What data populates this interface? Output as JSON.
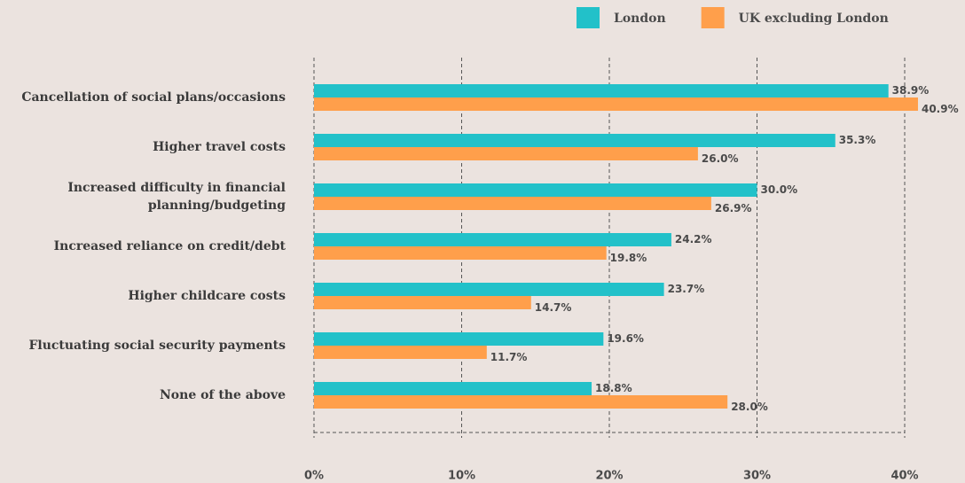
{
  "chart_data": {
    "type": "bar",
    "orientation": "horizontal",
    "categories": [
      "Cancellation of social plans/occasions",
      "Higher travel costs",
      "Increased difficulty in financial planning/budgeting",
      "Increased reliance on credit/debt",
      "Higher childcare costs",
      "Fluctuating social security payments",
      "None of the above"
    ],
    "series": [
      {
        "name": "London",
        "color": "#22c1c9",
        "values": [
          38.9,
          35.3,
          30.0,
          24.2,
          23.7,
          19.6,
          18.8
        ],
        "value_labels": [
          "38.9%",
          "35.3%",
          "30.0%",
          "24.2%",
          "23.7%",
          "19.6%",
          "18.8%"
        ]
      },
      {
        "name": "UK excluding London",
        "color": "#ff9f4b",
        "values": [
          40.9,
          26.0,
          26.9,
          19.8,
          14.7,
          11.7,
          28.0
        ],
        "value_labels": [
          "40.9%",
          "26.0%",
          "26.9%",
          "19.8%",
          "14.7%",
          "11.7%",
          "28.0%"
        ]
      }
    ],
    "xlim": [
      0,
      40
    ],
    "xticks": [
      {
        "value": 0,
        "label": "0%"
      },
      {
        "value": 10,
        "label": "10%"
      },
      {
        "value": 20,
        "label": "20%"
      },
      {
        "value": 30,
        "label": "30%"
      },
      {
        "value": 40,
        "label": "40%"
      }
    ],
    "grid": true,
    "legend": "top-right"
  }
}
